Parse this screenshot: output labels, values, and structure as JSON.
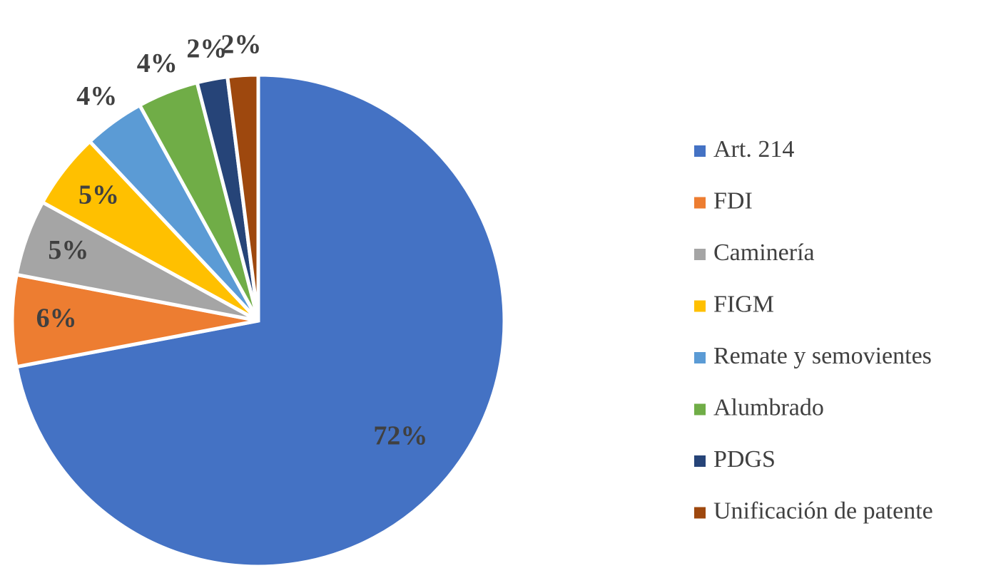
{
  "chart_data": {
    "type": "pie",
    "categories": [
      "Art. 214",
      "FDI",
      "Caminería",
      "FIGM",
      "Remate y semovientes",
      "Alumbrado",
      "PDGS",
      "Unificación de patente"
    ],
    "values": [
      72,
      6,
      5,
      5,
      4,
      4,
      2,
      2
    ],
    "value_labels": [
      "72%",
      "6%",
      "5%",
      "5%",
      "4%",
      "4%",
      "2%",
      "2%"
    ],
    "colors": [
      "#4472c4",
      "#ed7d31",
      "#a5a5a5",
      "#ffc000",
      "#5b9bd5",
      "#70ad47",
      "#264478",
      "#9e480e"
    ],
    "legend": "right"
  }
}
